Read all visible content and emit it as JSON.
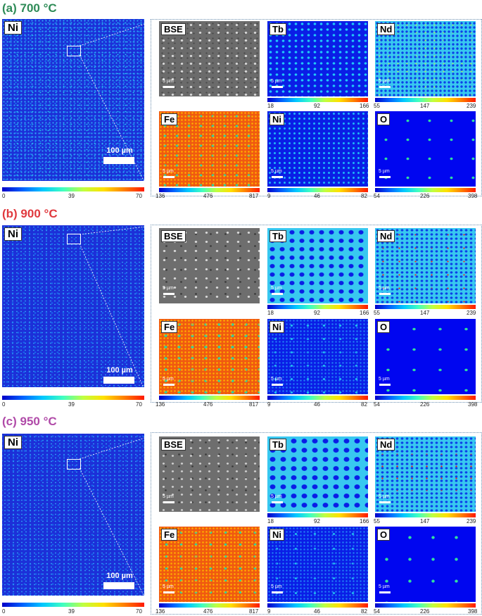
{
  "panels": [
    {
      "id": "a",
      "title": "(a) 700 °C",
      "title_color": "#2e8b57"
    },
    {
      "id": "b",
      "title": "(b) 900 °C",
      "title_color": "#e0393e"
    },
    {
      "id": "c",
      "title": "(c) 950 °C",
      "title_color": "#b04aa8"
    }
  ],
  "large_map": {
    "label": "Ni",
    "scalebar": "100 µm",
    "colorbar": [
      "0",
      "39",
      "70"
    ]
  },
  "small_maps": {
    "bse": {
      "label": "BSE",
      "scalebar": "5 µm"
    },
    "tb": {
      "label": "Tb",
      "scalebar": "5 µm",
      "colorbar": [
        "18",
        "92",
        "166"
      ]
    },
    "nd": {
      "label": "Nd",
      "scalebar": "5 µm",
      "colorbar": [
        "55",
        "147",
        "239"
      ]
    },
    "fe": {
      "label": "Fe",
      "scalebar": "5 µm",
      "colorbar": [
        "136",
        "476",
        "817"
      ]
    },
    "ni": {
      "label": "Ni",
      "scalebar": "5 µm",
      "colorbar": [
        "9",
        "46",
        "82"
      ]
    },
    "o": {
      "label": "O",
      "scalebar": "5 µm",
      "colorbar": [
        "54",
        "226",
        "398"
      ]
    }
  }
}
